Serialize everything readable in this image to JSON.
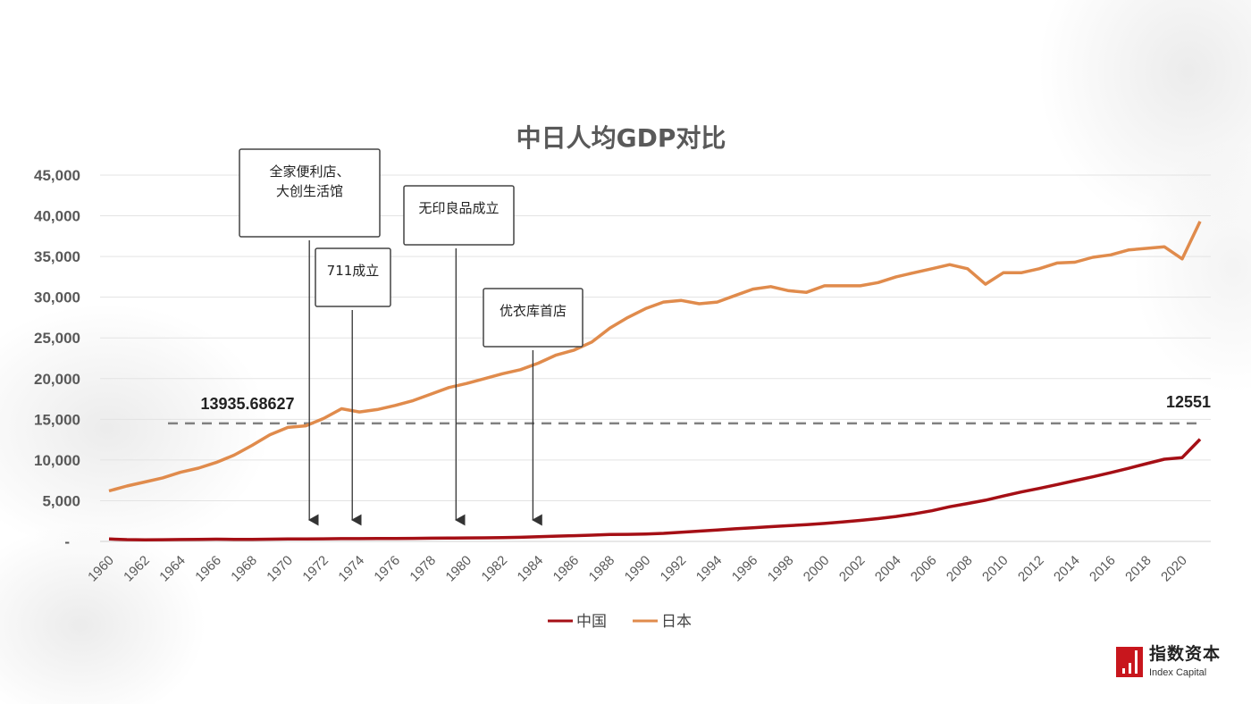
{
  "chart_data": {
    "type": "line",
    "title": "中日人均GDP对比",
    "xlabel": "",
    "ylabel": "",
    "ylim": [
      0,
      45000
    ],
    "yticks": [
      0,
      5000,
      10000,
      15000,
      20000,
      25000,
      30000,
      35000,
      40000,
      45000
    ],
    "ytick_labels": [
      "-",
      "5,000",
      "10,000",
      "15,000",
      "20,000",
      "25,000",
      "30,000",
      "35,000",
      "40,000",
      "45,000"
    ],
    "x": [
      1960,
      1961,
      1962,
      1963,
      1964,
      1965,
      1966,
      1967,
      1968,
      1969,
      1970,
      1971,
      1972,
      1973,
      1974,
      1975,
      1976,
      1977,
      1978,
      1979,
      1980,
      1981,
      1982,
      1983,
      1984,
      1985,
      1986,
      1987,
      1988,
      1989,
      1990,
      1991,
      1992,
      1993,
      1994,
      1995,
      1996,
      1997,
      1998,
      1999,
      2000,
      2001,
      2002,
      2003,
      2004,
      2005,
      2006,
      2007,
      2008,
      2009,
      2010,
      2011,
      2012,
      2013,
      2014,
      2015,
      2016,
      2017,
      2018,
      2019,
      2020,
      2021
    ],
    "xtick_labels": [
      "1960",
      "1962",
      "1964",
      "1966",
      "1968",
      "1970",
      "1972",
      "1974",
      "1976",
      "1978",
      "1980",
      "1982",
      "1984",
      "1986",
      "1988",
      "1990",
      "1992",
      "1994",
      "1996",
      "1998",
      "2000",
      "2002",
      "2004",
      "2006",
      "2008",
      "2010",
      "2012",
      "2014",
      "2016",
      "2018",
      "2020"
    ],
    "grid": true,
    "legend_position": "bottom",
    "series": [
      {
        "name": "中国",
        "color": "#a50f15",
        "values": [
          300,
          220,
          200,
          210,
          230,
          250,
          270,
          250,
          240,
          270,
          300,
          310,
          320,
          340,
          340,
          360,
          350,
          370,
          390,
          410,
          430,
          440,
          470,
          510,
          580,
          650,
          700,
          770,
          840,
          870,
          910,
          990,
          1120,
          1260,
          1410,
          1550,
          1680,
          1810,
          1930,
          2060,
          2210,
          2380,
          2580,
          2800,
          3060,
          3380,
          3770,
          4260,
          4650,
          5060,
          5580,
          6070,
          6510,
          6980,
          7460,
          7940,
          8440,
          8980,
          9550,
          10100,
          10300,
          12551
        ]
      },
      {
        "name": "日本",
        "color": "#e08b4c",
        "values": [
          6200,
          6800,
          7300,
          7800,
          8500,
          9000,
          9700,
          10600,
          11800,
          13100,
          14000,
          14200,
          15100,
          16300,
          15900,
          16200,
          16700,
          17300,
          18100,
          18900,
          19400,
          20000,
          20600,
          21100,
          21900,
          22900,
          23500,
          24500,
          26200,
          27500,
          28600,
          29400,
          29600,
          29200,
          29400,
          30200,
          31000,
          31300,
          30800,
          30600,
          31400,
          31400,
          31400,
          31800,
          32500,
          33000,
          33500,
          34000,
          33500,
          31600,
          33000,
          33000,
          33500,
          34200,
          34300,
          34900,
          35200,
          35800,
          36000,
          36200,
          34700,
          39300
        ]
      }
    ],
    "reference_line": {
      "value": 14500,
      "style": "dashed",
      "color": "#808080"
    },
    "data_labels": {
      "left": "13935.68627",
      "right": "12551"
    },
    "annotations": [
      {
        "text_lines": [
          "全家便利店、",
          "大创生活馆"
        ],
        "year": 1971.2
      },
      {
        "text_lines": [
          "711成立"
        ],
        "year": 1973.6
      },
      {
        "text_lines": [
          "无印良品成立"
        ],
        "year": 1979.4
      },
      {
        "text_lines": [
          "优衣库首店"
        ],
        "year": 1983.7
      }
    ]
  },
  "logo": {
    "cn": "指数资本",
    "en": "Index Capital"
  }
}
